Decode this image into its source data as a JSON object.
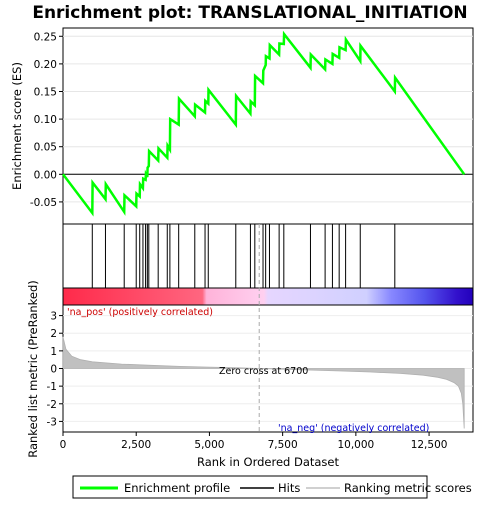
{
  "chart_data": {
    "type": "line",
    "title": "Enrichment plot: TRANSLATIONAL_INITIATION",
    "top_panel": {
      "ylabel": "Enrichment score (ES)",
      "ylim": [
        -0.09,
        0.265
      ],
      "yticks": [
        -0.05,
        0.0,
        0.05,
        0.1,
        0.15,
        0.2,
        0.25
      ],
      "ytick_labels": [
        "-0.05",
        "0.00",
        "0.05",
        "0.10",
        "0.15",
        "0.20",
        "0.25"
      ],
      "series": [
        {
          "name": "Enrichment profile",
          "color": "#00ff00",
          "x": [
            0,
            1000,
            1010,
            1450,
            1460,
            2090,
            2100,
            2500,
            2510,
            2620,
            2630,
            2730,
            2740,
            2820,
            2830,
            2880,
            2890,
            2930,
            2940,
            3250,
            3260,
            3560,
            3570,
            3650,
            3660,
            3950,
            3960,
            4500,
            4510,
            4850,
            4860,
            4960,
            4970,
            5900,
            5910,
            6400,
            6410,
            6550,
            6560,
            6830,
            6840,
            6920,
            6930,
            7050,
            7060,
            7380,
            7390,
            7540,
            7550,
            8450,
            8460,
            8950,
            8960,
            9200,
            9210,
            9430,
            9440,
            9650,
            9660,
            10150,
            10160,
            11330,
            11340,
            13700
          ],
          "y": [
            0.0,
            -0.07,
            -0.015,
            -0.045,
            -0.018,
            -0.068,
            -0.038,
            -0.058,
            -0.035,
            -0.04,
            -0.018,
            -0.025,
            -0.008,
            -0.01,
            0.0,
            -0.005,
            0.012,
            0.015,
            0.042,
            0.025,
            0.047,
            0.03,
            0.052,
            0.045,
            0.1,
            0.09,
            0.137,
            0.105,
            0.126,
            0.112,
            0.133,
            0.128,
            0.153,
            0.09,
            0.142,
            0.11,
            0.132,
            0.125,
            0.178,
            0.165,
            0.188,
            0.198,
            0.214,
            0.21,
            0.234,
            0.217,
            0.237,
            0.236,
            0.254,
            0.193,
            0.217,
            0.19,
            0.208,
            0.2,
            0.218,
            0.211,
            0.23,
            0.225,
            0.244,
            0.205,
            0.233,
            0.15,
            0.175,
            0.0
          ]
        }
      ]
    },
    "hits_panel": {
      "legend_name": "Hits",
      "hit_positions": [
        1000,
        1450,
        2090,
        2500,
        2620,
        2730,
        2820,
        2880,
        2930,
        3250,
        3560,
        3650,
        3950,
        4500,
        4850,
        4960,
        5900,
        6400,
        6550,
        6830,
        6920,
        7050,
        7380,
        7540,
        8450,
        8950,
        9200,
        9430,
        9650,
        10150,
        11330
      ]
    },
    "ranking_panel": {
      "legend_name": "Ranking metric scores",
      "ylabel": "Ranked list metric (PreRanked)",
      "xlabel": "Rank in Ordered Dataset",
      "ylim": [
        -3.6,
        3.6
      ],
      "yticks": [
        -3,
        -2,
        -1,
        0,
        1,
        2,
        3
      ],
      "ytick_labels": [
        "-3",
        "-2",
        "-1",
        "0",
        "1",
        "2",
        "3"
      ],
      "xlim": [
        0,
        14000
      ],
      "xticks": [
        0,
        2500,
        5000,
        7500,
        10000,
        12500
      ],
      "xtick_labels": [
        "0",
        "2,500",
        "5,000",
        "7,500",
        "10,000",
        "12,500"
      ],
      "zero_cross": 6700,
      "zero_cross_label": "Zero cross at 6700",
      "pos_label": "'na_pos' (positively correlated)",
      "neg_label": "'na_neg' (negatively correlated)",
      "metric_x": [
        0,
        100,
        300,
        600,
        1000,
        2000,
        3000,
        4000,
        5000,
        6000,
        6700,
        7500,
        8500,
        9500,
        10500,
        11500,
        12300,
        12800,
        13100,
        13350,
        13500,
        13600,
        13650,
        13700
      ],
      "metric_y": [
        1.8,
        1.1,
        0.7,
        0.5,
        0.38,
        0.25,
        0.18,
        0.12,
        0.08,
        0.04,
        0.0,
        -0.04,
        -0.09,
        -0.14,
        -0.2,
        -0.28,
        -0.38,
        -0.5,
        -0.62,
        -0.8,
        -1.0,
        -1.4,
        -2.0,
        -3.4
      ]
    },
    "gradient_bar": {
      "stops": [
        {
          "at": 0.0,
          "color": "#ff2a4a"
        },
        {
          "at": 0.34,
          "color": "#ff6680"
        },
        {
          "at": 0.35,
          "color": "#ffb3d9"
        },
        {
          "at": 0.49,
          "color": "#ffd0f0"
        },
        {
          "at": 0.5,
          "color": "#e6d6ff"
        },
        {
          "at": 0.74,
          "color": "#d0d0ff"
        },
        {
          "at": 0.8,
          "color": "#8888ff"
        },
        {
          "at": 0.88,
          "color": "#5555ee"
        },
        {
          "at": 0.96,
          "color": "#3311cc"
        },
        {
          "at": 1.0,
          "color": "#2200bb"
        }
      ]
    },
    "colors": {
      "profile": "#00ff00",
      "hit": "#000000",
      "metric_fill": "#c0c0c0",
      "zero_line": "#aaaaaa",
      "pos_label": "#cc0000",
      "neg_label": "#0000cc"
    }
  }
}
